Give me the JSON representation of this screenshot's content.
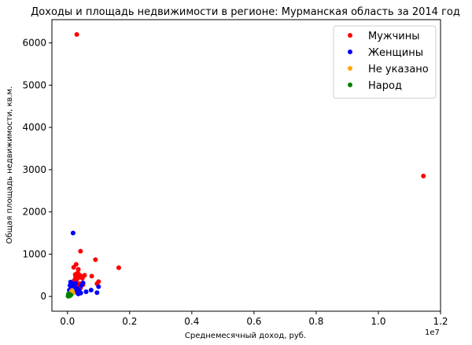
{
  "chart_data": {
    "type": "scatter",
    "title": "Доходы и площадь недвижимости в регионе: Мурманская область за 2014 год",
    "xlabel": "Среднемесячный доход, руб.",
    "ylabel": "Общая площадь недвижимости, кв.м.",
    "x_offset_label": "1e7",
    "xlim": [
      -500000,
      12000000
    ],
    "ylim": [
      -350,
      6550
    ],
    "x_ticks": [
      0,
      2000000,
      4000000,
      6000000,
      8000000,
      10000000,
      12000000
    ],
    "x_tick_labels": [
      "0.0",
      "0.2",
      "0.4",
      "0.6",
      "0.8",
      "1.0",
      "1.2"
    ],
    "y_ticks": [
      0,
      1000,
      2000,
      3000,
      4000,
      5000,
      6000
    ],
    "y_tick_labels": [
      "0",
      "1000",
      "2000",
      "3000",
      "4000",
      "5000",
      "6000"
    ],
    "legend_position": "top-right",
    "grid": false,
    "series": [
      {
        "name": "Мужчины",
        "color": "#ff0000",
        "points": [
          [
            300000,
            6200
          ],
          [
            11450000,
            2850
          ],
          [
            1650000,
            680
          ],
          [
            900000,
            870
          ],
          [
            420000,
            1070
          ],
          [
            280000,
            760
          ],
          [
            200000,
            690
          ],
          [
            350000,
            640
          ],
          [
            330000,
            560
          ],
          [
            250000,
            520
          ],
          [
            400000,
            500
          ],
          [
            450000,
            470
          ],
          [
            550000,
            500
          ],
          [
            780000,
            480
          ],
          [
            1000000,
            350
          ],
          [
            950000,
            300
          ],
          [
            480000,
            430
          ],
          [
            360000,
            450
          ],
          [
            300000,
            400
          ],
          [
            220000,
            380
          ],
          [
            280000,
            330
          ],
          [
            400000,
            300
          ],
          [
            350000,
            270
          ],
          [
            250000,
            230
          ],
          [
            180000,
            200
          ],
          [
            300000,
            180
          ],
          [
            420000,
            200
          ],
          [
            150000,
            150
          ],
          [
            220000,
            120
          ],
          [
            320000,
            250
          ],
          [
            500000,
            280
          ],
          [
            260000,
            460
          ]
        ]
      },
      {
        "name": "Женщины",
        "color": "#0000ff",
        "points": [
          [
            180000,
            1500
          ],
          [
            1000000,
            230
          ],
          [
            950000,
            90
          ],
          [
            760000,
            150
          ],
          [
            600000,
            110
          ],
          [
            430000,
            80
          ],
          [
            350000,
            60
          ],
          [
            250000,
            120
          ],
          [
            150000,
            300
          ],
          [
            100000,
            340
          ],
          [
            200000,
            280
          ],
          [
            300000,
            200
          ],
          [
            450000,
            260
          ],
          [
            500000,
            320
          ],
          [
            380000,
            150
          ],
          [
            280000,
            100
          ],
          [
            170000,
            80
          ],
          [
            120000,
            200
          ],
          [
            220000,
            170
          ],
          [
            330000,
            130
          ],
          [
            80000,
            260
          ],
          [
            60000,
            150
          ],
          [
            130000,
            60
          ],
          [
            260000,
            310
          ]
        ]
      },
      {
        "name": "Не указано",
        "color": "#ffa500",
        "points": [
          [
            150000,
            140
          ],
          [
            120000,
            110
          ],
          [
            180000,
            80
          ]
        ]
      },
      {
        "name": "Народ",
        "color": "#008000",
        "points": [
          [
            20000,
            10
          ],
          [
            40000,
            20
          ],
          [
            60000,
            30
          ],
          [
            80000,
            40
          ],
          [
            30000,
            60
          ],
          [
            50000,
            15
          ],
          [
            70000,
            50
          ],
          [
            90000,
            25
          ],
          [
            110000,
            35
          ],
          [
            25000,
            5
          ],
          [
            45000,
            45
          ],
          [
            65000,
            10
          ]
        ]
      }
    ]
  }
}
